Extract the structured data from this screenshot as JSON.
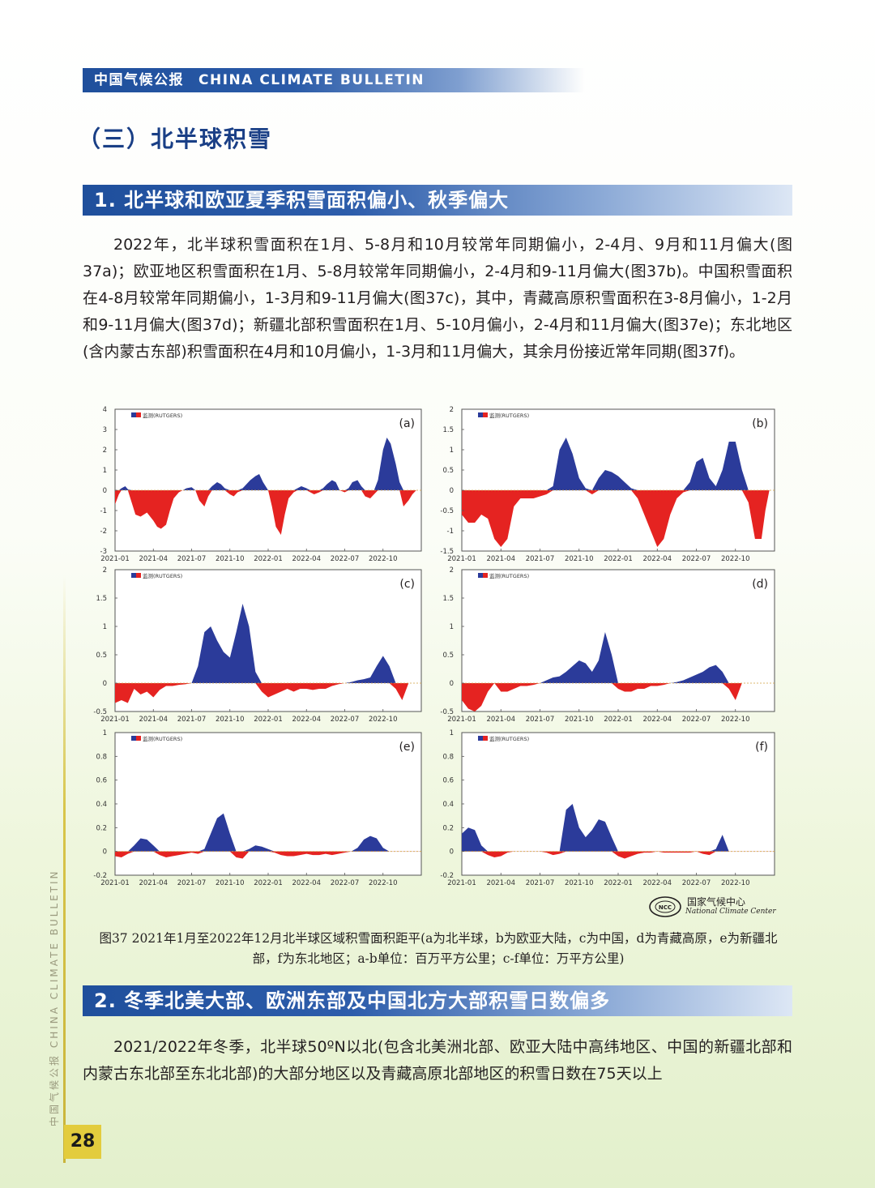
{
  "header": {
    "cn": "中国气候公报",
    "en": "CHINA CLIMATE BULLETIN"
  },
  "section_title": "（三）北半球积雪",
  "subsection1": "1. 北半球和欧亚夏季积雪面积偏小、秋季偏大",
  "paragraph1": "2022年，北半球积雪面积在1月、5-8月和10月较常年同期偏小，2-4月、9月和11月偏大(图37a)；欧亚地区积雪面积在1月、5-8月较常年同期偏小，2-4月和9-11月偏大(图37b)。中国积雪面积在4-8月较常年同期偏小，1-3月和9-11月偏大(图37c)，其中，青藏高原积雪面积在3-8月偏小，1-2月和9-11月偏大(图37d)；新疆北部积雪面积在1月、5-10月偏小，2-4月和11月偏大(图37e)；东北地区(含内蒙古东部)积雪面积在4月和10月偏小，1-3月和11月偏大，其余月份接近常年同期(图37f)。",
  "chart_data": [
    {
      "type": "area",
      "panel": "(a)",
      "legend": "监测(RUTGERS)",
      "ylim": [
        -3,
        4
      ],
      "yticks": [
        "4",
        "3",
        "2",
        "1",
        "0",
        "-1",
        "-2",
        "-3"
      ],
      "xticks": [
        "2021-01",
        "2021-04",
        "2021-07",
        "2021-10",
        "2022-01",
        "2022-04",
        "2022-07",
        "2022-10"
      ],
      "x": [
        0,
        0.3,
        0.5,
        0.8,
        1,
        1.3,
        1.6,
        2,
        2.5,
        3,
        3.3,
        3.6,
        4,
        4.3,
        4.6,
        5,
        5.3,
        5.6,
        6,
        6.3,
        6.6,
        7,
        7.3,
        7.6,
        8,
        8.3,
        8.6,
        9,
        9.3,
        9.6,
        10,
        10.3,
        10.6,
        11,
        11.3,
        11.6,
        12,
        12.3,
        12.6,
        13,
        13.3,
        13.6,
        14,
        14.3,
        14.6,
        15,
        15.3,
        15.6,
        16,
        16.3,
        16.6,
        17,
        17.3,
        17.6,
        18,
        18.3,
        18.6,
        19,
        19.3,
        19.6,
        20,
        20.3,
        20.6,
        21,
        21.3,
        21.6,
        22,
        22.3,
        22.6,
        23,
        23.3,
        23.6,
        23.9
      ],
      "values": [
        -0.7,
        -0.2,
        0.1,
        0.2,
        0.05,
        -0.6,
        -1.2,
        -1.3,
        -1.1,
        -1.5,
        -1.8,
        -1.9,
        -1.7,
        -1.0,
        -0.4,
        -0.1,
        0,
        0.1,
        0.15,
        0,
        -0.5,
        -0.8,
        -0.3,
        0.2,
        0.4,
        0.3,
        0.1,
        -0.2,
        -0.3,
        -0.1,
        0.1,
        0.3,
        0.5,
        0.7,
        0.8,
        0.4,
        0,
        -0.8,
        -1.8,
        -2.2,
        -1.2,
        -0.4,
        -0.1,
        0.1,
        0.2,
        0.1,
        -0.1,
        -0.2,
        -0.1,
        0.1,
        0.3,
        0.5,
        0.4,
        0,
        -0.1,
        0.1,
        0.4,
        0.5,
        0.2,
        -0.3,
        -0.4,
        -0.2,
        0.5,
        2.0,
        2.6,
        2.3,
        1.3,
        0.4,
        -0.8,
        -0.5,
        -0.2,
        0,
        0
      ]
    },
    {
      "type": "area",
      "panel": "(b)",
      "legend": "监测(RUTGERS)",
      "ylim": [
        -1.5,
        2
      ],
      "yticks": [
        "2",
        "1.5",
        "1",
        "0.5",
        "0",
        "-0.5",
        "-1",
        "-1.5"
      ],
      "xticks": [
        "2021-01",
        "2021-04",
        "2021-07",
        "2021-10",
        "2022-01",
        "2022-04",
        "2022-07",
        "2022-10"
      ],
      "x": [
        0,
        0.5,
        1,
        1.5,
        2,
        2.5,
        3,
        3.5,
        4,
        4.5,
        5,
        5.5,
        6,
        6.5,
        7,
        7.5,
        8,
        8.5,
        9,
        9.5,
        10,
        10.5,
        11,
        11.5,
        12,
        12.5,
        13,
        13.5,
        14,
        14.5,
        15,
        15.5,
        16,
        16.5,
        17,
        17.5,
        18,
        18.5,
        19,
        19.5,
        20,
        20.5,
        21,
        21.5,
        22,
        22.5,
        23,
        23.3,
        23.6,
        23.9
      ],
      "values": [
        -0.6,
        -0.8,
        -0.8,
        -0.6,
        -0.7,
        -1.2,
        -1.4,
        -1.2,
        -0.4,
        -0.2,
        -0.2,
        -0.2,
        -0.15,
        -0.1,
        0.1,
        1.0,
        1.3,
        0.9,
        0.3,
        0.05,
        -0.1,
        0.3,
        0.5,
        0.45,
        0.35,
        0.2,
        0.05,
        -0.2,
        -0.6,
        -1.0,
        -1.4,
        -1.2,
        -0.6,
        -0.2,
        -0.05,
        0.2,
        0.7,
        0.8,
        0.3,
        0.1,
        0.5,
        1.2,
        1.2,
        0.5,
        -0.3,
        -1.2,
        -1.2,
        -0.5,
        0,
        0
      ]
    },
    {
      "type": "area",
      "panel": "(c)",
      "legend": "监测(RUTGERS)",
      "ylim": [
        -0.5,
        2
      ],
      "yticks": [
        "2",
        "1.5",
        "1",
        "0.5",
        "0",
        "-0.5"
      ],
      "xticks": [
        "2021-01",
        "2021-04",
        "2021-07",
        "2021-10",
        "2022-01",
        "2022-04",
        "2022-07",
        "2022-10"
      ],
      "x": [
        0,
        0.5,
        1,
        1.5,
        2,
        2.5,
        3,
        3.5,
        4,
        4.5,
        5,
        5.5,
        6,
        6.5,
        7,
        7.5,
        8,
        8.5,
        9,
        9.5,
        10,
        10.5,
        11,
        11.5,
        12,
        12.5,
        13,
        13.5,
        14,
        14.5,
        15,
        15.5,
        16,
        16.5,
        17,
        17.5,
        18,
        18.5,
        19,
        19.5,
        20,
        20.5,
        21,
        21.5,
        22,
        22.5,
        23,
        23.3,
        23.6,
        23.9
      ],
      "values": [
        -0.35,
        -0.3,
        -0.35,
        -0.1,
        -0.2,
        -0.15,
        -0.25,
        -0.12,
        -0.05,
        -0.05,
        -0.03,
        -0.02,
        0,
        0.3,
        0.9,
        1.0,
        0.75,
        0.55,
        0.45,
        0.9,
        1.4,
        1.0,
        0.2,
        -0.15,
        -0.25,
        -0.2,
        -0.15,
        -0.1,
        -0.15,
        -0.1,
        -0.1,
        -0.12,
        -0.1,
        -0.1,
        -0.05,
        -0.02,
        0,
        0.02,
        0.05,
        0.07,
        0.1,
        0.3,
        0.48,
        0.3,
        -0.1,
        -0.3,
        0,
        0,
        0,
        0
      ]
    },
    {
      "type": "area",
      "panel": "(d)",
      "legend": "监测(RUTGERS)",
      "ylim": [
        -0.5,
        2
      ],
      "yticks": [
        "2",
        "1.5",
        "1",
        "0.5",
        "0",
        "-0.5"
      ],
      "xticks": [
        "2021-01",
        "2021-04",
        "2021-07",
        "2021-10",
        "2022-01",
        "2022-04",
        "2022-07",
        "2022-10"
      ],
      "x": [
        0,
        0.5,
        1,
        1.5,
        2,
        2.5,
        3,
        3.5,
        4,
        4.5,
        5,
        5.5,
        6,
        6.5,
        7,
        7.5,
        8,
        8.5,
        9,
        9.5,
        10,
        10.5,
        11,
        11.5,
        12,
        12.5,
        13,
        13.5,
        14,
        14.5,
        15,
        15.5,
        16,
        16.5,
        17,
        17.5,
        18,
        18.5,
        19,
        19.5,
        20,
        20.5,
        21,
        21.5,
        22,
        22.5,
        23,
        23.3,
        23.6,
        23.9
      ],
      "values": [
        -0.3,
        -0.45,
        -0.5,
        -0.4,
        -0.15,
        0,
        -0.15,
        -0.15,
        -0.1,
        -0.05,
        -0.05,
        -0.03,
        0,
        0.05,
        0.1,
        0.12,
        0.2,
        0.3,
        0.4,
        0.35,
        0.2,
        0.4,
        0.9,
        0.5,
        -0.1,
        -0.15,
        -0.15,
        -0.1,
        -0.1,
        -0.05,
        -0.05,
        -0.03,
        0,
        0.02,
        0.05,
        0.1,
        0.15,
        0.2,
        0.28,
        0.32,
        0.2,
        -0.1,
        -0.3,
        0,
        0,
        0,
        0,
        0,
        0,
        0
      ]
    },
    {
      "type": "area",
      "panel": "(e)",
      "legend": "监测(RUTGERS)",
      "ylim": [
        -0.2,
        1
      ],
      "yticks": [
        "1",
        "0.8",
        "0.6",
        "0.4",
        "0.2",
        "0",
        "-0.2"
      ],
      "xticks": [
        "2021-01",
        "2021-04",
        "2021-07",
        "2021-10",
        "2022-01",
        "2022-04",
        "2022-07",
        "2022-10"
      ],
      "x": [
        0,
        0.5,
        1,
        1.5,
        2,
        2.5,
        3,
        3.5,
        4,
        4.5,
        5,
        5.5,
        6,
        6.5,
        7,
        7.5,
        8,
        8.5,
        9,
        9.5,
        10,
        10.5,
        11,
        11.5,
        12,
        12.5,
        13,
        13.5,
        14,
        14.5,
        15,
        15.5,
        16,
        16.5,
        17,
        17.5,
        18,
        18.5,
        19,
        19.5,
        20,
        20.5,
        21,
        21.5,
        22,
        22.5,
        23,
        23.3,
        23.6,
        23.9
      ],
      "values": [
        -0.04,
        -0.05,
        -0.02,
        0.05,
        0.11,
        0.1,
        0.05,
        -0.03,
        -0.05,
        -0.04,
        -0.03,
        -0.02,
        -0.01,
        -0.02,
        0.02,
        0.15,
        0.28,
        0.32,
        0.15,
        -0.05,
        -0.06,
        0.02,
        0.05,
        0.04,
        0.02,
        -0.01,
        -0.03,
        -0.04,
        -0.04,
        -0.03,
        -0.02,
        -0.03,
        -0.03,
        -0.02,
        -0.03,
        -0.02,
        -0.01,
        0,
        0.03,
        0.1,
        0.13,
        0.11,
        0.03,
        0,
        0,
        0,
        0,
        0,
        0,
        0
      ]
    },
    {
      "type": "area",
      "panel": "(f)",
      "legend": "监测(RUTGERS)",
      "ylim": [
        -0.2,
        1
      ],
      "yticks": [
        "1",
        "0.8",
        "0.6",
        "0.4",
        "0.2",
        "0",
        "-0.2"
      ],
      "xticks": [
        "2021-01",
        "2021-04",
        "2021-07",
        "2021-10",
        "2022-01",
        "2022-04",
        "2022-07",
        "2022-10"
      ],
      "x": [
        0,
        0.5,
        1,
        1.5,
        2,
        2.5,
        3,
        3.5,
        4,
        4.5,
        5,
        5.5,
        6,
        6.5,
        7,
        7.5,
        8,
        8.5,
        9,
        9.5,
        10,
        10.5,
        11,
        11.5,
        12,
        12.5,
        13,
        13.5,
        14,
        14.5,
        15,
        15.5,
        16,
        16.5,
        17,
        17.5,
        18,
        18.5,
        19,
        19.5,
        20,
        20.5,
        21,
        21.5,
        22,
        22.5,
        23,
        23.3,
        23.6,
        23.9
      ],
      "values": [
        0.15,
        0.2,
        0.18,
        0.05,
        -0.03,
        -0.05,
        -0.04,
        -0.01,
        0,
        0,
        0,
        0,
        0,
        -0.01,
        -0.03,
        -0.02,
        0.35,
        0.4,
        0.2,
        0.12,
        0.18,
        0.27,
        0.25,
        0.12,
        -0.04,
        -0.06,
        -0.04,
        -0.02,
        -0.01,
        -0.01,
        0,
        -0.01,
        -0.01,
        -0.01,
        -0.01,
        -0.01,
        0,
        -0.02,
        -0.03,
        0.02,
        0.14,
        0,
        0,
        0,
        0,
        0,
        0,
        0,
        0,
        0
      ]
    }
  ],
  "chart_style": {
    "positive_color": "#2b3b9a",
    "negative_color": "#e52321"
  },
  "logo": {
    "cn": "国家气候中心",
    "en": "National Climate Center"
  },
  "caption": "图37 2021年1月至2022年12月北半球区域积雪面积距平(a为北半球，b为欧亚大陆，c为中国，d为青藏高原，e为新疆北部，f为东北地区；a-b单位：百万平方公里；c-f单位：万平方公里)",
  "subsection2": "2. 冬季北美大部、欧洲东部及中国北方大部积雪日数偏多",
  "paragraph2": "2021/2022年冬季，北半球50ºN以北(包含北美洲北部、欧亚大陆中高纬地区、中国的新疆北部和内蒙古东北部至东北北部)的大部分地区以及青藏高原北部地区的积雪日数在75天以上",
  "side_text": "中国气候公报    CHINA CLIMATE BULLETIN",
  "page_number": "28"
}
